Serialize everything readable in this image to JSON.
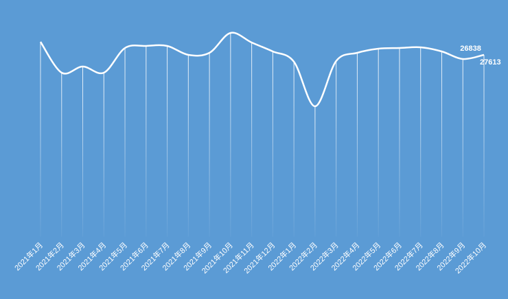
{
  "chart_data": {
    "type": "line",
    "categories": [
      "2021年1月",
      "2021年2月",
      "2021年3月",
      "2021年4月",
      "2021年5月",
      "2021年6月",
      "2021年7月",
      "2021年8月",
      "2021年9月",
      "2021年10月",
      "2021年11月",
      "2021年12月",
      "2022年1月",
      "2022年2月",
      "2022年3月",
      "2022年4月",
      "2022年5月",
      "2022年6月",
      "2022年7月",
      "2022年8月",
      "2022年9月",
      "2022年10月"
    ],
    "values": [
      30064,
      24259,
      25420,
      24259,
      28903,
      29290,
      29290,
      27613,
      28000,
      31741,
      29935,
      28258,
      26323,
      17938,
      26452,
      28000,
      28774,
      28903,
      29032,
      28258,
      26838,
      27613
    ],
    "color": "#ffffff",
    "background": "#5b9bd5",
    "smooth": true
  }
}
